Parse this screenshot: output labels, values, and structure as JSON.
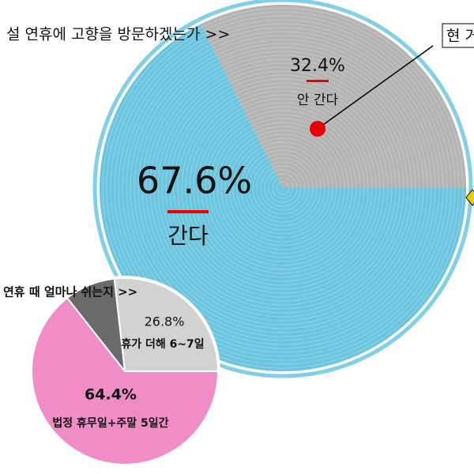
{
  "chart_data": [
    {
      "type": "pie",
      "title": "설 연휴에 고향을 방문하겠는가 >>",
      "annotation": "현 거주",
      "categories": [
        "안 간다",
        "간다"
      ],
      "values": [
        32.4,
        67.6
      ],
      "value_labels": [
        "32.4%",
        "67.6%"
      ],
      "colors": [
        "#b4b4b4",
        "#6cc5df"
      ]
    },
    {
      "type": "pie",
      "title": "연휴 때 얼마나 쉬는지 >>",
      "categories": [
        "휴가 더해 6~7일",
        null,
        "법정 휴무일+주말 5일간"
      ],
      "values": [
        26.8,
        8.8,
        64.4
      ],
      "value_labels": [
        "26.8%",
        null,
        "64.4%"
      ],
      "colors": [
        "#d2d2d2",
        "#6a6a6a",
        "#f08cc6"
      ]
    }
  ]
}
